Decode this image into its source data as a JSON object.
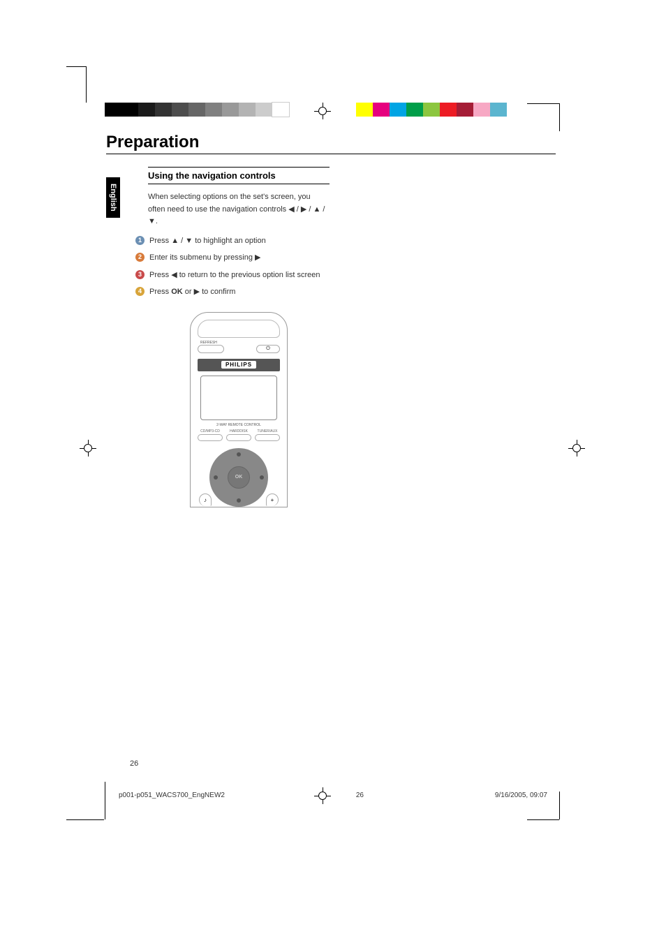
{
  "section_title": "Preparation",
  "language_tab": "English",
  "subheading": "Using the navigation controls",
  "intro_text_parts": {
    "a": "When selecting options on the set's screen, you often need to use the navigation controls ",
    "b": " / ",
    "c": " / ",
    "d": " / ",
    "e": "."
  },
  "arrows": {
    "left": "◀",
    "right": "▶",
    "up": "▲",
    "down": "▼"
  },
  "steps": [
    {
      "n": "1",
      "before": "Press  ",
      "mid": " / ",
      "after": " to highlight an option",
      "a1": "▲",
      "a2": "▼"
    },
    {
      "n": "2",
      "before": "Enter its submenu by pressing  ",
      "mid": "",
      "after": "",
      "a1": "▶",
      "a2": ""
    },
    {
      "n": "3",
      "before": "Press ",
      "mid": "",
      "after": " to return to the previous option list screen",
      "a1": "◀",
      "a2": ""
    },
    {
      "n": "4",
      "before": "Press ",
      "bold": "OK",
      "mid2": " or  ",
      "after2": "  to confirm",
      "a1": "▶"
    }
  ],
  "step_colors": {
    "1": "#6b8fb3",
    "2": "#d87b3a",
    "3": "#c94b4b",
    "4": "#d8a43a"
  },
  "remote": {
    "refresh_label": "REFRESH",
    "brand": "PHILIPS",
    "screen_sub": "2-WAY\nREMOTE CONTROL",
    "src1": "CD/MP3-CD",
    "src2": "HARDDISK",
    "src3": "TUNER/AUX",
    "ok": "OK",
    "mute": "♪",
    "plus": "+"
  },
  "page_number": "26",
  "print_footer": {
    "file": "p001-p051_WACS700_EngNEW2",
    "page": "26",
    "datetime": "9/16/2005, 09:07"
  },
  "print_bars": {
    "left_colors": [
      "#000000",
      "#000000",
      "#1a1a1a",
      "#333333",
      "#4d4d4d",
      "#666666",
      "#808080",
      "#999999",
      "#b3b3b3",
      "#cccccc",
      "#ffffff"
    ],
    "right_colors": [
      "#ffff00",
      "#e6007e",
      "#00a4e4",
      "#009e49",
      "#8cc63f",
      "#ed1c24",
      "#a51d36",
      "#f7a8c4",
      "#5bb5cf"
    ]
  }
}
